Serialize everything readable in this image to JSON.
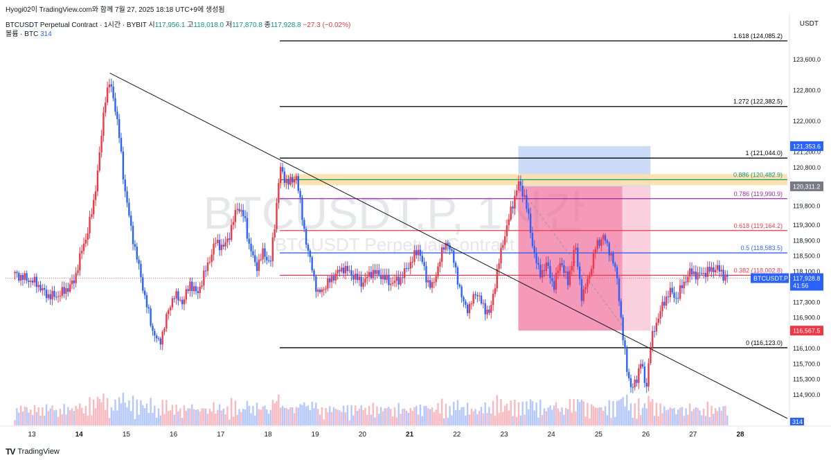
{
  "header": {
    "created": "Hyogi02이 TradingView.com와 함께 7월 27, 2025 18:18 UTC+9에 생성됨",
    "symbol": "BTCUSDT Perpetual Contract · 1시간 · BYBIT",
    "open_label": "시",
    "open": "117,956.1",
    "high_label": "고",
    "high": "118,018.0",
    "low_label": "저",
    "low": "117,870.8",
    "close_label": "종",
    "close": "117,928.8",
    "change": "−27.3 (−0.02%)",
    "volume_label": "볼륨 · BTC",
    "volume": "314"
  },
  "currency": "USDT",
  "watermark": {
    "line1": "BTCUSDT.P, 1시간",
    "line2": "BTCUSDT Perpetual Contract"
  },
  "footer": {
    "brand": "TradingView"
  },
  "colors": {
    "up": "#f23645",
    "down": "#2962ff",
    "box_blue": "#bbd0f5",
    "box_red": "#f06292",
    "box_pink": "#f8bbd0"
  },
  "chart_data": {
    "type": "candlestick",
    "x_ticks": [
      "13",
      "14",
      "15",
      "16",
      "17",
      "18",
      "19",
      "20",
      "21",
      "22",
      "23",
      "24",
      "25",
      "26",
      "27",
      "28"
    ],
    "bold_x_ticks": [
      "14",
      "21",
      "28"
    ],
    "y_ticks": [
      "123,600.0",
      "122,800.0",
      "122,000.0",
      "121,200.0",
      "120,800.0",
      "119,800.0",
      "119,300.0",
      "118,900.0",
      "118,500.0",
      "118,100.0",
      "117,300.0",
      "116,900.0",
      "116,100.0",
      "115,700.0",
      "115,300.0",
      "114,900.0"
    ],
    "fib_levels": [
      {
        "label": "1.618 (124,085.2)",
        "value": 124085.2,
        "color": "#000000"
      },
      {
        "label": "1.272 (122,382.5)",
        "value": 122382.5,
        "color": "#000000"
      },
      {
        "label": "1 (121,044.0)",
        "value": 121044.0,
        "color": "#000000"
      },
      {
        "label": "0.886 (120,482.9)",
        "value": 120482.9,
        "color": "#089981"
      },
      {
        "label": "0.786 (119,990.9)",
        "value": 119990.9,
        "color": "#9c27b0"
      },
      {
        "label": "0.618 (119,164.2)",
        "value": 119164.2,
        "color": "#f23645"
      },
      {
        "label": "0.5 (118,583.5)",
        "value": 118583.5,
        "color": "#2962ff"
      },
      {
        "label": "0.382 (118,002.8)",
        "value": 118002.8,
        "color": "#f23645"
      },
      {
        "label": "0 (116,123.0)",
        "value": 116123.0,
        "color": "#000000"
      }
    ],
    "price_tags": [
      {
        "label": "121,353.6",
        "value": 121353.6,
        "color": "#2962ff"
      },
      {
        "label": "120,311.2",
        "value": 120311.2,
        "color": "#787b86"
      },
      {
        "label": "116,567.5",
        "value": 116567.5,
        "color": "#f23645"
      }
    ],
    "last_price": {
      "label": "117,928.8",
      "value": 117928.8,
      "timer": "41:56",
      "symbol_tag": "BTCUSDT.P"
    },
    "volume_tag": "314",
    "price_path": [
      [
        12.6,
        118050
      ],
      [
        12.9,
        117900
      ],
      [
        13.1,
        117800
      ],
      [
        13.3,
        117500
      ],
      [
        13.5,
        117450
      ],
      [
        13.7,
        117600
      ],
      [
        13.9,
        117850
      ],
      [
        14.0,
        118400
      ],
      [
        14.15,
        119000
      ],
      [
        14.3,
        119800
      ],
      [
        14.45,
        121300
      ],
      [
        14.55,
        122600
      ],
      [
        14.65,
        123000
      ],
      [
        14.75,
        122500
      ],
      [
        14.85,
        121600
      ],
      [
        14.95,
        120400
      ],
      [
        15.1,
        119200
      ],
      [
        15.25,
        118300
      ],
      [
        15.4,
        117400
      ],
      [
        15.55,
        116600
      ],
      [
        15.7,
        116200
      ],
      [
        15.85,
        116900
      ],
      [
        16.0,
        117500
      ],
      [
        16.2,
        117300
      ],
      [
        16.35,
        117800
      ],
      [
        16.5,
        117500
      ],
      [
        16.7,
        118200
      ],
      [
        16.9,
        118900
      ],
      [
        17.05,
        118700
      ],
      [
        17.2,
        119100
      ],
      [
        17.35,
        119800
      ],
      [
        17.5,
        119500
      ],
      [
        17.6,
        118800
      ],
      [
        17.75,
        118200
      ],
      [
        17.9,
        118600
      ],
      [
        18.05,
        118300
      ],
      [
        18.15,
        119400
      ],
      [
        18.25,
        120800
      ],
      [
        18.35,
        120500
      ],
      [
        18.5,
        120400
      ],
      [
        18.6,
        120600
      ],
      [
        18.75,
        119300
      ],
      [
        18.85,
        118600
      ],
      [
        18.95,
        118100
      ],
      [
        19.05,
        117500
      ],
      [
        19.2,
        117700
      ],
      [
        19.4,
        118000
      ],
      [
        19.6,
        118200
      ],
      [
        19.8,
        118000
      ],
      [
        20.0,
        117800
      ],
      [
        20.2,
        118100
      ],
      [
        20.4,
        118000
      ],
      [
        20.6,
        117800
      ],
      [
        20.8,
        117900
      ],
      [
        21.0,
        118300
      ],
      [
        21.2,
        118700
      ],
      [
        21.35,
        117900
      ],
      [
        21.5,
        117700
      ],
      [
        21.65,
        118500
      ],
      [
        21.8,
        118900
      ],
      [
        21.95,
        118300
      ],
      [
        22.1,
        117400
      ],
      [
        22.25,
        117100
      ],
      [
        22.4,
        117600
      ],
      [
        22.55,
        117200
      ],
      [
        22.7,
        117000
      ],
      [
        22.85,
        118100
      ],
      [
        23.0,
        119000
      ],
      [
        23.15,
        119700
      ],
      [
        23.3,
        120400
      ],
      [
        23.45,
        120000
      ],
      [
        23.6,
        118800
      ],
      [
        23.75,
        118000
      ],
      [
        23.9,
        118300
      ],
      [
        24.05,
        117700
      ],
      [
        24.2,
        118400
      ],
      [
        24.35,
        117800
      ],
      [
        24.5,
        118800
      ],
      [
        24.65,
        117400
      ],
      [
        24.8,
        118000
      ],
      [
        24.95,
        118800
      ],
      [
        25.1,
        119000
      ],
      [
        25.25,
        118600
      ],
      [
        25.4,
        117900
      ],
      [
        25.5,
        116500
      ],
      [
        25.6,
        115600
      ],
      [
        25.7,
        115000
      ],
      [
        25.8,
        115300
      ],
      [
        25.9,
        115800
      ],
      [
        26.0,
        115000
      ],
      [
        26.1,
        116200
      ],
      [
        26.2,
        116700
      ],
      [
        26.35,
        117200
      ],
      [
        26.5,
        117600
      ],
      [
        26.65,
        117400
      ],
      [
        26.8,
        117800
      ],
      [
        26.95,
        118100
      ],
      [
        27.1,
        118000
      ],
      [
        27.3,
        118100
      ],
      [
        27.5,
        118200
      ],
      [
        27.65,
        118000
      ],
      [
        27.75,
        117930
      ]
    ]
  }
}
